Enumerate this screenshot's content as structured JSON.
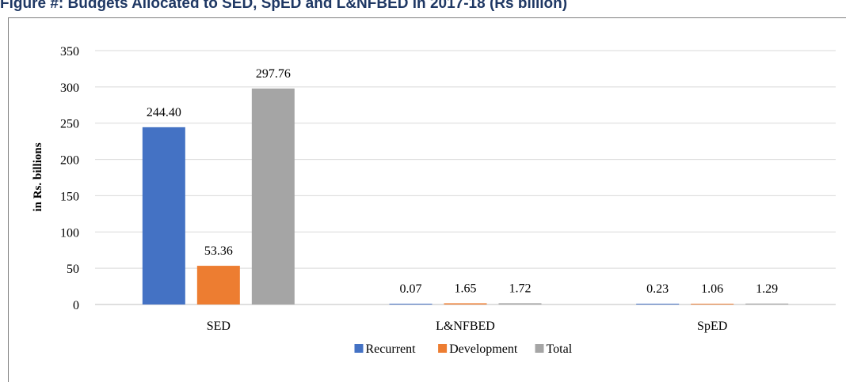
{
  "chart_data": {
    "type": "bar",
    "title": "Figure #: Budgets Allocated to SED, SpED and L&NFBED in 2017-18 (Rs billion)",
    "ylabel": "in Rs. billions",
    "xlabel": "",
    "categories": [
      "SED",
      "L&NFBED",
      "SpED"
    ],
    "series": [
      {
        "name": "Recurrent",
        "color": "#4472c4",
        "values": [
          244.4,
          0.07,
          0.23
        ],
        "labels": [
          "244.40",
          "0.07",
          "0.23"
        ]
      },
      {
        "name": "Development",
        "color": "#ed7d31",
        "values": [
          53.36,
          1.65,
          1.06
        ],
        "labels": [
          "53.36",
          "1.65",
          "1.06"
        ]
      },
      {
        "name": "Total",
        "color": "#a5a5a5",
        "values": [
          297.76,
          1.72,
          1.29
        ],
        "labels": [
          "297.76",
          "1.72",
          "1.29"
        ]
      }
    ],
    "ylim": [
      0,
      350
    ],
    "yticks": [
      "0",
      "50",
      "100",
      "150",
      "200",
      "250",
      "300",
      "350"
    ],
    "grid": true,
    "legend_position": "bottom"
  }
}
